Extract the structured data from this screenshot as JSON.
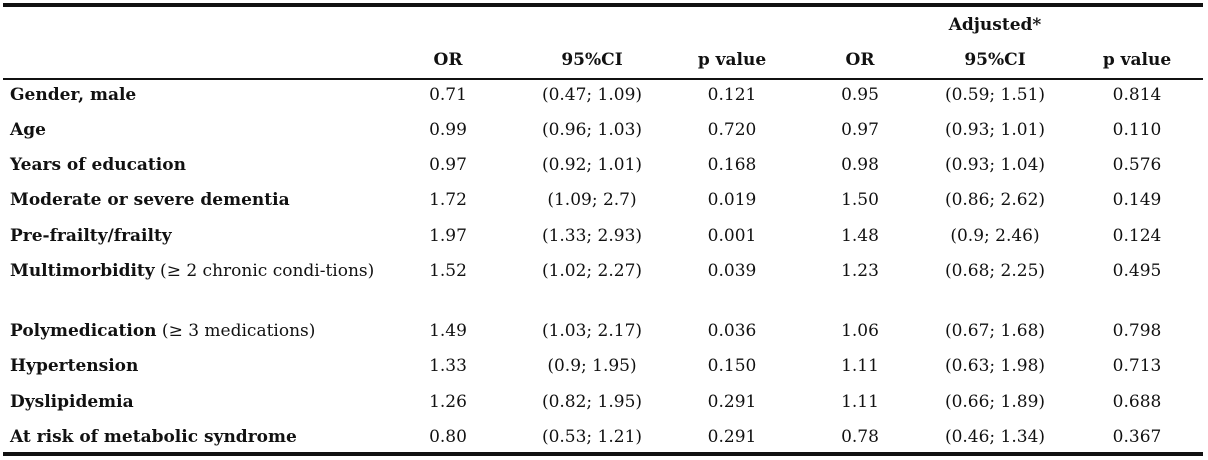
{
  "table": {
    "group_header": "Adjusted*",
    "columns": [
      "OR",
      "95%CI",
      "p value",
      "OR",
      "95%CI",
      "p value"
    ],
    "rows": [
      {
        "label": "Gender, male",
        "note": "",
        "values": [
          "0.71",
          "(0.47; 1.09)",
          "0.121",
          "0.95",
          "(0.59; 1.51)",
          "0.814"
        ]
      },
      {
        "label": "Age",
        "note": "",
        "values": [
          "0.99",
          "(0.96; 1.03)",
          "0.720",
          "0.97",
          "(0.93; 1.01)",
          "0.110"
        ]
      },
      {
        "label": "Years of education",
        "note": "",
        "values": [
          "0.97",
          "(0.92; 1.01)",
          "0.168",
          "0.98",
          "(0.93; 1.04)",
          "0.576"
        ]
      },
      {
        "label": "Moderate or severe dementia",
        "note": "",
        "values": [
          "1.72",
          "(1.09; 2.7)",
          "0.019",
          "1.50",
          "(0.86; 2.62)",
          "0.149"
        ]
      },
      {
        "label": "Pre-frailty/frailty",
        "note": "",
        "values": [
          "1.97",
          "(1.33; 2.93)",
          "0.001",
          "1.48",
          "(0.9; 2.46)",
          "0.124"
        ]
      },
      {
        "label": "Multimorbidity",
        "note": " (≥ 2 chronic condi-tions)",
        "values": [
          "1.52",
          "(1.02; 2.27)",
          "0.039",
          "1.23",
          "(0.68; 2.25)",
          "0.495"
        ]
      },
      {
        "label": "Polymedication",
        "note": " (≥ 3 medications)",
        "values": [
          "1.49",
          "(1.03; 2.17)",
          "0.036",
          "1.06",
          "(0.67; 1.68)",
          "0.798"
        ]
      },
      {
        "label": "Hypertension",
        "note": "",
        "values": [
          "1.33",
          "(0.9; 1.95)",
          "0.150",
          "1.11",
          "(0.63; 1.98)",
          "0.713"
        ]
      },
      {
        "label": "Dyslipidemia",
        "note": "",
        "values": [
          "1.26",
          "(0.82; 1.95)",
          "0.291",
          "1.11",
          "(0.66; 1.89)",
          "0.688"
        ]
      },
      {
        "label": "At risk of metabolic syndrome",
        "note": "",
        "values": [
          "0.80",
          "(0.53; 1.21)",
          "0.291",
          "0.78",
          "(0.46; 1.34)",
          "0.367"
        ]
      }
    ]
  }
}
